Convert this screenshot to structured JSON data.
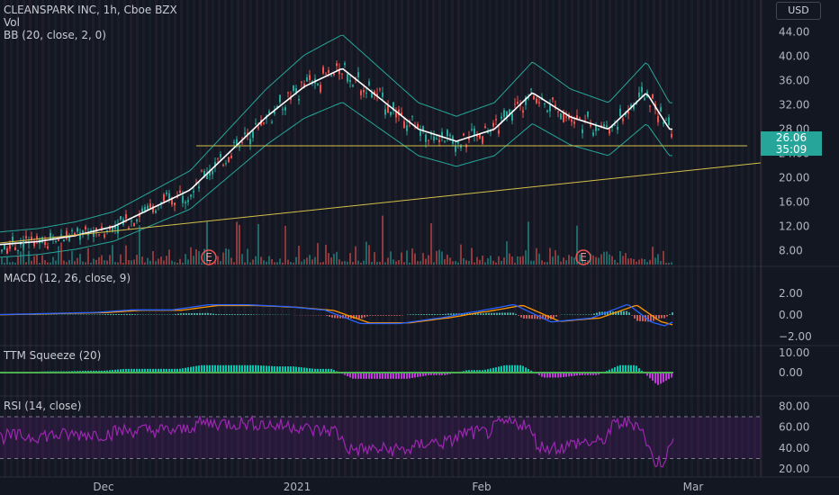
{
  "header": {
    "symbol_line": "CLEANSPARK INC, 1h, Cboe BZX",
    "vol_label": "Vol",
    "bb_label": "BB (20, close, 2, 0)",
    "currency": "USD"
  },
  "price_badge": {
    "price": "26.06",
    "countdown": "35:09"
  },
  "panes": {
    "macd_label": "MACD (12, 26, close, 9)",
    "ttm_label": "TTM Squeeze (20)",
    "rsi_label": "RSI (14, close)"
  },
  "earnings_marker": "E",
  "colors": {
    "background": "#131722",
    "bull": "#26a69a",
    "bear": "#ef5350",
    "bb_mid": "#ffffff",
    "bb_band": "#26a69a",
    "trendline": "#d4c04a",
    "macd": "#2962ff",
    "signal": "#ff9800",
    "rsi": "#9c27b0",
    "squeeze_pos": "#00e5c8",
    "squeeze_neg": "#e040fb",
    "squeeze_dots": "#4caf50"
  },
  "chart_data": [
    {
      "type": "line",
      "pane": "price",
      "title": "CLEANSPARK INC, 1h, Cboe BZX",
      "x_labels": [
        "Dec",
        "2021",
        "Feb",
        "Mar"
      ],
      "y_ticks": [
        8,
        12,
        16,
        20,
        24,
        28,
        32,
        36,
        40,
        44
      ],
      "ylim": [
        6,
        46
      ],
      "log_scale": false,
      "series": [
        {
          "name": "BB (20, close, 2, 0)",
          "x": [
            0,
            0.05,
            0.1,
            0.15,
            0.2,
            0.25,
            0.3,
            0.35,
            0.4,
            0.45,
            0.5,
            0.55,
            0.6,
            0.65,
            0.7,
            0.75,
            0.8,
            0.85,
            0.88
          ],
          "values": [
            9,
            9.5,
            10.5,
            12,
            15,
            18,
            24,
            30,
            35,
            38,
            33,
            28,
            26,
            28,
            34,
            30,
            28,
            34,
            28
          ]
        }
      ],
      "annotations": [
        {
          "text": "26.06",
          "type": "last-price"
        },
        {
          "text": "35:09",
          "type": "bar-countdown"
        }
      ]
    },
    {
      "type": "line",
      "pane": "macd",
      "title": "MACD (12, 26, close, 9)",
      "y_ticks": [
        2,
        0,
        -2
      ],
      "ylim": [
        -2.8,
        3.2
      ]
    },
    {
      "type": "area",
      "pane": "ttm",
      "title": "TTM Squeeze (20)",
      "y_ticks": [
        10,
        0
      ],
      "ylim": [
        -10,
        12
      ]
    },
    {
      "type": "line",
      "pane": "rsi",
      "title": "RSI (14, close)",
      "y_ticks": [
        80,
        60,
        40,
        20
      ],
      "ylim": [
        15,
        88
      ]
    }
  ],
  "axis_labels": {
    "price": [
      "44.00",
      "40.00",
      "36.00",
      "32.00",
      "28.00",
      "24.00",
      "20.00",
      "16.00",
      "12.00",
      "8.00"
    ],
    "macd": [
      "2.00",
      "0.00",
      "−2.00"
    ],
    "ttm": [
      "10.00",
      "0.00"
    ],
    "rsi": [
      "80.00",
      "60.00",
      "40.00",
      "20.00"
    ],
    "time": [
      "Dec",
      "2021",
      "Feb",
      "Mar"
    ]
  }
}
